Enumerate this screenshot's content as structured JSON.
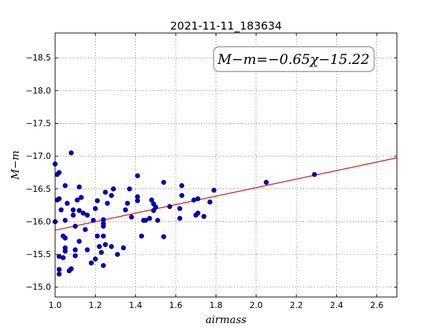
{
  "chart_data": {
    "type": "scatter",
    "title": "2021-11-11_183634",
    "xlabel": "airmass",
    "ylabel": "M−m",
    "xlim": [
      1.0,
      2.7
    ],
    "ylim": [
      -18.88,
      -14.85
    ],
    "y_inverted": true,
    "grid": true,
    "xticks": [
      1.0,
      1.2,
      1.4,
      1.6,
      1.8,
      2.0,
      2.2,
      2.4,
      2.6
    ],
    "xtick_labels": [
      "1.0",
      "1.2",
      "1.4",
      "1.6",
      "1.8",
      "2.0",
      "2.2",
      "2.4",
      "2.6"
    ],
    "yticks": [
      -15.0,
      -15.5,
      -16.0,
      -16.5,
      -17.0,
      -17.5,
      -18.0,
      -18.5
    ],
    "ytick_labels": [
      "−15.0",
      "−15.5",
      "−16.0",
      "−16.5",
      "−17.0",
      "−17.5",
      "−18.0",
      "−18.5"
    ],
    "annotation": "M−m=−0.65χ−15.22",
    "point_color": "#0000cc",
    "line_color": "#dd0000",
    "fit": {
      "slope": -0.65,
      "intercept": -15.22,
      "x_range": [
        1.0,
        2.7
      ]
    },
    "points": [
      [
        1.0,
        -16.0
      ],
      [
        1.0,
        -16.88
      ],
      [
        1.01,
        -16.33
      ],
      [
        1.01,
        -16.72
      ],
      [
        1.02,
        -15.2
      ],
      [
        1.02,
        -15.27
      ],
      [
        1.02,
        -15.47
      ],
      [
        1.02,
        -16.35
      ],
      [
        1.02,
        -16.75
      ],
      [
        1.03,
        -16.18
      ],
      [
        1.04,
        -15.45
      ],
      [
        1.04,
        -15.78
      ],
      [
        1.05,
        -15.75
      ],
      [
        1.05,
        -15.55
      ],
      [
        1.05,
        -15.6
      ],
      [
        1.05,
        -16.02
      ],
      [
        1.05,
        -16.55
      ],
      [
        1.06,
        -16.28
      ],
      [
        1.07,
        -15.25
      ],
      [
        1.08,
        -15.28
      ],
      [
        1.08,
        -17.05
      ],
      [
        1.09,
        -16.1
      ],
      [
        1.09,
        -16.18
      ],
      [
        1.1,
        -15.48
      ],
      [
        1.1,
        -15.57
      ],
      [
        1.1,
        -15.93
      ],
      [
        1.11,
        -16.33
      ],
      [
        1.12,
        -15.7
      ],
      [
        1.12,
        -16.17
      ],
      [
        1.12,
        -16.53
      ],
      [
        1.13,
        -16.37
      ],
      [
        1.14,
        -16.13
      ],
      [
        1.15,
        -15.88
      ],
      [
        1.16,
        -16.1
      ],
      [
        1.16,
        -15.57
      ],
      [
        1.18,
        -15.37
      ],
      [
        1.19,
        -16.02
      ],
      [
        1.2,
        -16.2
      ],
      [
        1.2,
        -15.43
      ],
      [
        1.21,
        -15.78
      ],
      [
        1.21,
        -16.32
      ],
      [
        1.22,
        -15.62
      ],
      [
        1.23,
        -15.53
      ],
      [
        1.24,
        -15.33
      ],
      [
        1.24,
        -15.93
      ],
      [
        1.24,
        -16.03
      ],
      [
        1.24,
        -15.78
      ],
      [
        1.24,
        -15.97
      ],
      [
        1.25,
        -15.65
      ],
      [
        1.25,
        -16.45
      ],
      [
        1.26,
        -16.28
      ],
      [
        1.28,
        -15.62
      ],
      [
        1.28,
        -16.4
      ],
      [
        1.29,
        -16.5
      ],
      [
        1.31,
        -15.5
      ],
      [
        1.34,
        -15.6
      ],
      [
        1.35,
        -16.18
      ],
      [
        1.36,
        -16.28
      ],
      [
        1.37,
        -16.5
      ],
      [
        1.38,
        -16.07
      ],
      [
        1.41,
        -16.38
      ],
      [
        1.41,
        -16.32
      ],
      [
        1.41,
        -16.7
      ],
      [
        1.43,
        -15.78
      ],
      [
        1.44,
        -16.02
      ],
      [
        1.45,
        -16.02
      ],
      [
        1.47,
        -16.05
      ],
      [
        1.48,
        -16.33
      ],
      [
        1.49,
        -16.17
      ],
      [
        1.49,
        -16.27
      ],
      [
        1.5,
        -16.22
      ],
      [
        1.51,
        -16.02
      ],
      [
        1.54,
        -16.6
      ],
      [
        1.54,
        -15.77
      ],
      [
        1.57,
        -16.23
      ],
      [
        1.62,
        -16.05
      ],
      [
        1.62,
        -16.2
      ],
      [
        1.63,
        -16.55
      ],
      [
        1.63,
        -16.4
      ],
      [
        1.69,
        -16.33
      ],
      [
        1.7,
        -16.1
      ],
      [
        1.71,
        -16.35
      ],
      [
        1.71,
        -16.13
      ],
      [
        1.74,
        -16.08
      ],
      [
        1.77,
        -16.3
      ],
      [
        1.79,
        -16.48
      ],
      [
        2.05,
        -16.6
      ],
      [
        2.29,
        -16.72
      ]
    ]
  }
}
